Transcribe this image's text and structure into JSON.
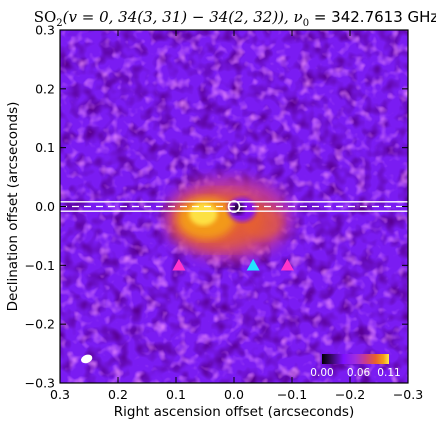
{
  "chart_data": {
    "type": "heatmap",
    "title": "SO₂(v = 0,  34(3,31) − 34(2,32)),  ν₀ = 342.7613 GHz",
    "title_parts": {
      "main": "SO",
      "sub": "2",
      "rest": "(v = 0,  34(3, 31) − 34(2, 32)),  ν",
      "nu_sub": "0",
      "freq": " = 342.7613 GHz"
    },
    "xlabel": "Right ascension offset (arcseconds)",
    "ylabel": "Declination offset (arcseconds)",
    "xlim": [
      0.3,
      -0.3
    ],
    "ylim": [
      -0.3,
      0.3
    ],
    "x_ticks": [
      0.3,
      0.2,
      0.1,
      0.0,
      -0.1,
      -0.2,
      -0.3
    ],
    "x_tick_labels": [
      "0.3",
      "0.2",
      "0.1",
      "0.0",
      "−0.1",
      "−0.2",
      "−0.3"
    ],
    "y_ticks": [
      -0.3,
      -0.2,
      -0.1,
      0.0,
      0.1,
      0.2,
      0.3
    ],
    "y_tick_labels": [
      "−0.3",
      "−0.2",
      "−0.1",
      "0.0",
      "0.1",
      "0.2",
      "0.3"
    ],
    "colormap": [
      "#000000",
      "#3a0a6b",
      "#7d10ff",
      "#a02de0",
      "#c83c8c",
      "#e8622a",
      "#f5a018",
      "#ffe94a"
    ],
    "background_color": "#7a1cf2",
    "colorbar": {
      "range": [
        0.0,
        0.11
      ],
      "tick_labels": [
        "0.00",
        "0.06",
        "0.11"
      ],
      "tick_values": [
        0.0,
        0.06,
        0.11
      ],
      "placement": "lower-right"
    },
    "emission_region": {
      "center": [
        0.02,
        -0.02
      ],
      "extent_ra": [
        0.12,
        -0.1
      ],
      "extent_dec": [
        -0.09,
        0.05
      ],
      "peak_value": 0.11
    },
    "horizontal_lines": [
      {
        "dec": 0.008,
        "style": "solid",
        "color": "#ffffff"
      },
      {
        "dec": -0.008,
        "style": "solid",
        "color": "#ffffff"
      },
      {
        "dec": 0.0,
        "style": "dashed",
        "color": "#ffffff"
      }
    ],
    "continuum_marker": {
      "ra": 0.0,
      "dec": 0.0,
      "color": "#ffffff"
    },
    "triangle_markers": [
      {
        "ra": 0.095,
        "dec": -0.1,
        "color": "#ff33cc"
      },
      {
        "ra": -0.033,
        "dec": -0.1,
        "color": "#22e5ff"
      },
      {
        "ra": -0.092,
        "dec": -0.1,
        "color": "#ff33cc"
      }
    ],
    "beam": {
      "ra": 0.254,
      "dec": -0.259,
      "major": 0.02,
      "minor": 0.014,
      "color": "#ffffff"
    }
  }
}
